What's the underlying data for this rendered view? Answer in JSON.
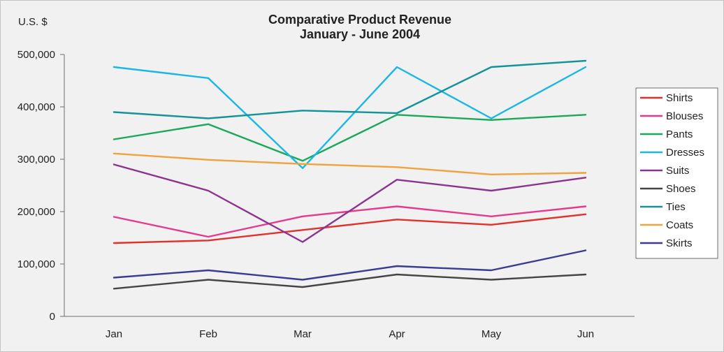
{
  "chart_data": {
    "type": "line",
    "title": "Comparative Product Revenue",
    "subtitle": "January - June 2004",
    "ylabel": "U.S. $",
    "categories": [
      "Jan",
      "Feb",
      "Mar",
      "Apr",
      "May",
      "Jun"
    ],
    "ylim": [
      0,
      500000
    ],
    "yticks": [
      0,
      100000,
      200000,
      300000,
      400000,
      500000
    ],
    "ytick_labels": [
      "0",
      "100,000",
      "200,000",
      "300,000",
      "400,000",
      "500,000"
    ],
    "grid": false,
    "legend_position": "right",
    "series": [
      {
        "name": "Shirts",
        "color": "#e0322d",
        "values": [
          140000,
          145000,
          165000,
          185000,
          175000,
          195000
        ]
      },
      {
        "name": "Blouses",
        "color": "#e6398c",
        "values": [
          190000,
          152000,
          191000,
          210000,
          191000,
          210000
        ]
      },
      {
        "name": "Pants",
        "color": "#1aa85a",
        "values": [
          338000,
          367000,
          297000,
          385000,
          375000,
          385000
        ]
      },
      {
        "name": "Dresses",
        "color": "#1ab7e4",
        "values": [
          476000,
          455000,
          283000,
          476000,
          378000,
          476000
        ]
      },
      {
        "name": "Suits",
        "color": "#8c3390",
        "values": [
          290000,
          240000,
          142000,
          261000,
          240000,
          265000
        ]
      },
      {
        "name": "Shoes",
        "color": "#454545",
        "values": [
          53000,
          70000,
          56000,
          80000,
          70000,
          80000
        ]
      },
      {
        "name": "Ties",
        "color": "#14939a",
        "values": [
          390000,
          378000,
          393000,
          388000,
          476000,
          488000
        ]
      },
      {
        "name": "Coats",
        "color": "#f0a33c",
        "values": [
          311000,
          299000,
          291000,
          285000,
          271000,
          274000
        ]
      },
      {
        "name": "Skirts",
        "color": "#3a3b92",
        "values": [
          74000,
          88000,
          70000,
          96000,
          88000,
          126000
        ]
      }
    ]
  }
}
